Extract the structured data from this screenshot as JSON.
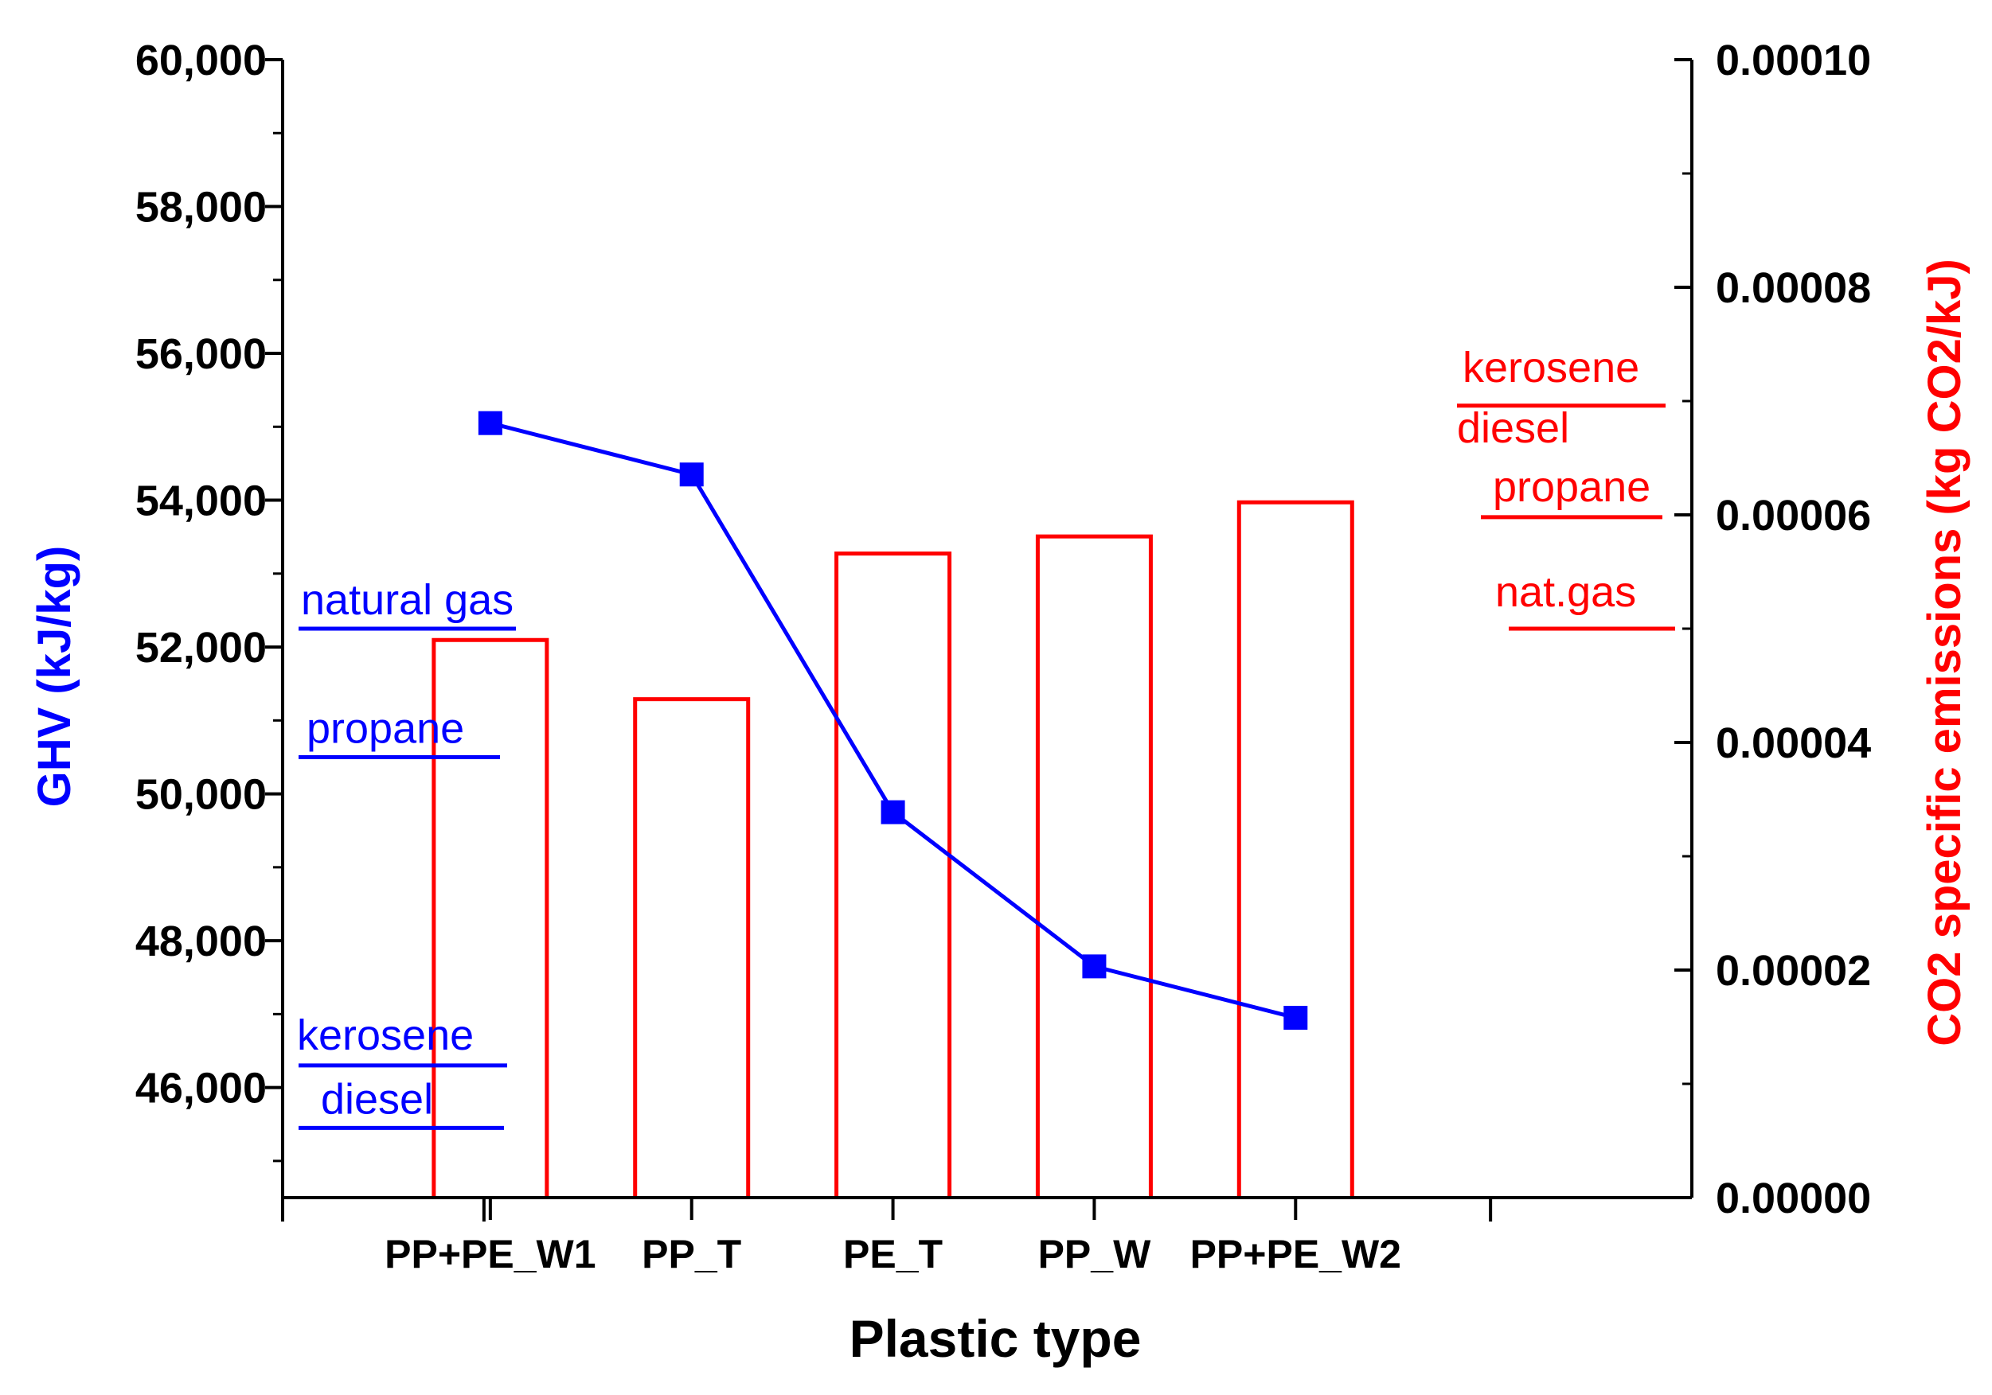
{
  "chart_data": {
    "type": "bar+line",
    "categories": [
      "PP+PE_W1",
      "PP_T",
      "PE_T",
      "PP_W",
      "PP+PE_W2"
    ],
    "xlabel": "Plastic type",
    "colors": {
      "left": "#0000ff",
      "right": "#ff0000",
      "axis": "#000000"
    },
    "left_axis": {
      "label": "GHV (kJ/kg)",
      "ylim": [
        44500,
        60000
      ],
      "major_ticks": [
        46000,
        48000,
        50000,
        52000,
        54000,
        56000,
        58000,
        60000
      ],
      "tick_labels": [
        "46,000",
        "48,000",
        "50,000",
        "52,000",
        "54,000",
        "56,000",
        "58,000",
        "60,000"
      ]
    },
    "right_axis": {
      "label": "CO2 specific emissions (kg CO2/kJ)",
      "ylim": [
        0,
        0.0001
      ],
      "major_ticks": [
        0,
        2e-05,
        4e-05,
        6e-05,
        8e-05,
        0.0001
      ],
      "tick_labels": [
        "0.00000",
        "0.00002",
        "0.00004",
        "0.00006",
        "0.00008",
        "0.00010"
      ]
    },
    "series": [
      {
        "name": "GHV",
        "type": "line",
        "axis": "left",
        "values": [
          55050,
          54350,
          49750,
          47650,
          46950
        ]
      },
      {
        "name": "CO2 specific emissions",
        "type": "bar",
        "axis": "right",
        "values": [
          4.9e-05,
          4.38e-05,
          5.66e-05,
          5.81e-05,
          6.11e-05
        ]
      }
    ],
    "reference_lines_left": [
      {
        "label": "natural gas",
        "value": 52250
      },
      {
        "label": "propane",
        "value": 50500
      },
      {
        "label": "kerosene",
        "value": 46300
      },
      {
        "label": "diesel",
        "value": 45450
      }
    ],
    "reference_lines_right": [
      {
        "label": "kerosene",
        "value": 6.96e-05
      },
      {
        "label": "diesel",
        "value": 6.96e-05
      },
      {
        "label": "propane",
        "value": 5.98e-05
      },
      {
        "label": "nat.gas",
        "value": 5e-05
      }
    ]
  }
}
